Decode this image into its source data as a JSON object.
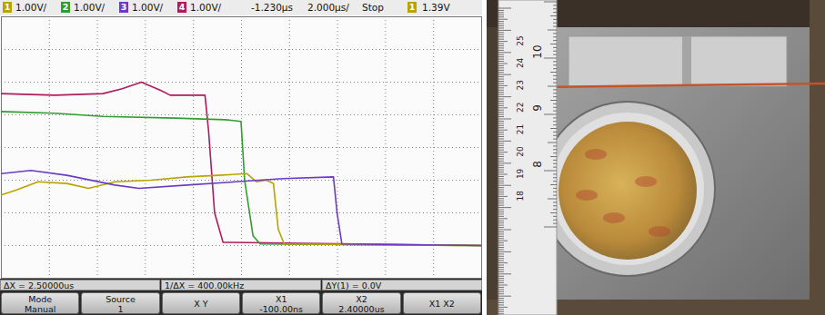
{
  "header": {
    "channels": [
      {
        "channel": "1",
        "scale": "1.00V/",
        "color": "#b8a300"
      },
      {
        "channel": "2",
        "scale": "1.00V/",
        "color": "#2f9e2f"
      },
      {
        "channel": "3",
        "scale": "1.00V/",
        "color": "#6a3cc0"
      },
      {
        "channel": "4",
        "scale": "1.00V/",
        "color": "#b01a5e"
      }
    ],
    "time_ref": "-1.230µs",
    "time_scale": "2.000µs/",
    "run_state": "Stop",
    "trigger": {
      "channel": "1",
      "level": "1.39V",
      "color": "#b8a300"
    }
  },
  "chart_data": {
    "type": "line",
    "xlim": [
      -11.23,
      8.77
    ],
    "xticks": [
      -11.23,
      -9.23,
      -7.23,
      -5.23,
      -3.23,
      -1.23,
      0.77,
      2.77,
      4.77,
      6.77,
      8.77
    ],
    "ylim": [
      -1,
      7
    ],
    "yticks": [
      -1,
      0,
      1,
      2,
      3,
      4,
      5,
      6,
      7
    ],
    "grid": true,
    "tick_labels": false,
    "series": [
      {
        "color": "#b01a5e",
        "x": [
          -11.23,
          -9.0,
          -7.0,
          -6.2,
          -5.4,
          -4.6,
          -4.2,
          -2.75,
          -2.6,
          -2.35,
          -2.0,
          8.77
        ],
        "values": [
          4.65,
          4.6,
          4.65,
          4.8,
          5.0,
          4.75,
          4.6,
          4.6,
          3.5,
          1.0,
          0.1,
          0
        ]
      },
      {
        "color": "#2f9e2f",
        "x": [
          -11.23,
          -9.0,
          -7.0,
          -4.0,
          -1.9,
          -1.25,
          -1.1,
          -0.75,
          -0.45,
          8.77
        ],
        "values": [
          4.1,
          4.05,
          3.95,
          3.9,
          3.85,
          3.8,
          2.0,
          0.3,
          0.05,
          0
        ]
      },
      {
        "color": "#b8a300",
        "x": [
          -11.23,
          -10.6,
          -9.7,
          -8.5,
          -7.6,
          -6.5,
          -5.0,
          -3.5,
          -2.2,
          -1.0,
          -0.6,
          -0.2,
          0.1,
          0.3,
          0.55,
          8.77
        ],
        "values": [
          1.55,
          1.7,
          1.95,
          1.9,
          1.75,
          1.95,
          2.0,
          2.1,
          2.15,
          2.2,
          1.95,
          2.0,
          1.9,
          0.5,
          0.05,
          0
        ]
      },
      {
        "color": "#6a3cc0",
        "x": [
          -11.23,
          -10.0,
          -8.5,
          -6.5,
          -5.5,
          -3.5,
          -1.5,
          0.5,
          2.6,
          2.75,
          2.95,
          8.77
        ],
        "values": [
          2.2,
          2.3,
          2.15,
          1.85,
          1.75,
          1.85,
          1.95,
          2.05,
          2.1,
          1.0,
          0.05,
          0
        ]
      }
    ]
  },
  "footer": {
    "readouts": [
      "ΔX = 2.50000us",
      "1/ΔX = 400.00kHz",
      "ΔY(1) = 0.0V"
    ],
    "softkeys": [
      {
        "label": "Mode",
        "value": "Manual"
      },
      {
        "label": "Source",
        "value": "1"
      },
      {
        "label": "X Y"
      },
      {
        "label": "X1",
        "value": "-100.00ns"
      },
      {
        "label": "X2",
        "value": "2.40000us"
      },
      {
        "label": "X1 X2"
      }
    ]
  },
  "photo": {
    "ruler_cm": [
      25,
      24,
      23,
      22,
      21,
      20,
      19,
      18
    ],
    "ruler_in": [
      10,
      9,
      8
    ]
  }
}
